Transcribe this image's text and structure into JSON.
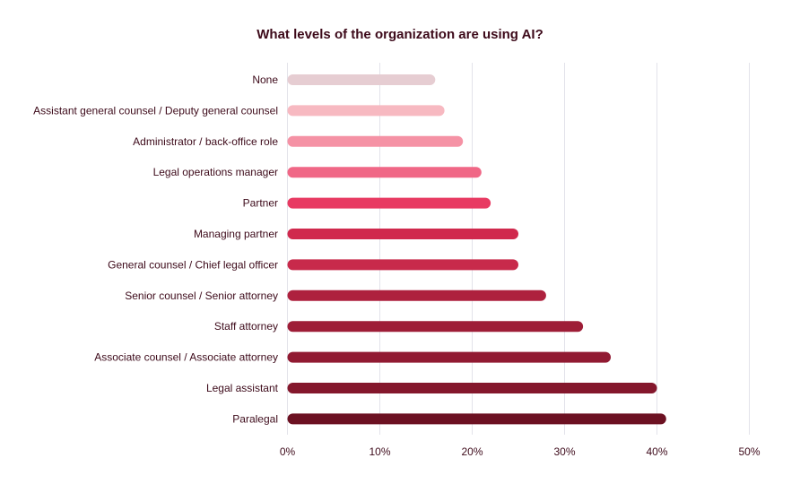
{
  "chart_data": {
    "type": "bar",
    "orientation": "horizontal",
    "title": "What levels of the organization are using AI?",
    "xlabel": "",
    "ylabel": "",
    "xlim": [
      0,
      50
    ],
    "x_ticks": [
      "0%",
      "10%",
      "20%",
      "30%",
      "40%",
      "50%"
    ],
    "grid": true,
    "categories": [
      "None",
      "Assistant general counsel / Deputy general counsel",
      "Administrator / back-office role",
      "Legal operations manager",
      "Partner",
      "Managing partner",
      "General counsel / Chief legal officer",
      "Senior counsel / Senior attorney",
      "Staff attorney",
      "Associate counsel / Associate attorney",
      "Legal assistant",
      "Paralegal"
    ],
    "values": [
      16,
      17,
      19,
      21,
      22,
      25,
      25,
      28,
      32,
      35,
      40,
      41
    ],
    "colors": [
      "#e6cdd2",
      "#f7b9c1",
      "#f592a5",
      "#f06786",
      "#e83a62",
      "#d0294d",
      "#c82a4b",
      "#ae213e",
      "#9e1d37",
      "#911a32",
      "#84172c",
      "#6c1122"
    ]
  }
}
